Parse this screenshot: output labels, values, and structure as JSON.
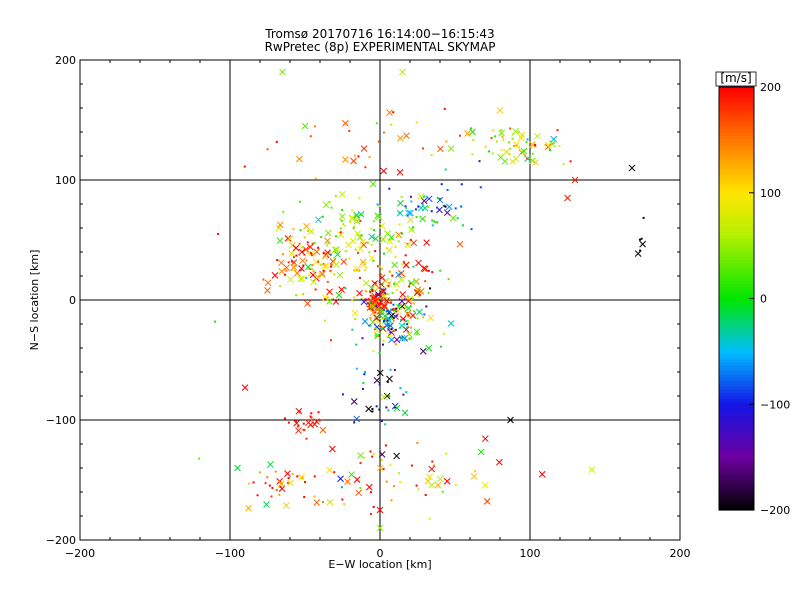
{
  "chart_data": {
    "type": "scatter",
    "title": "Tromsø 20170716 16:14:00−16:15:43",
    "subtitle": "RwPretec (8p) EXPERIMENTAL SKYMAP",
    "xlabel": "E−W location [km]",
    "ylabel": "N−S location [km]",
    "xlim": [
      -200,
      200
    ],
    "ylim": [
      -200,
      200
    ],
    "xticks": [
      -200,
      -100,
      0,
      100,
      200
    ],
    "yticks": [
      -200,
      -100,
      0,
      100,
      200
    ],
    "grid": true,
    "colorbar": {
      "label": "[m/s]",
      "range": [
        -200,
        200
      ],
      "ticks": [
        200,
        100,
        0,
        -100,
        -200
      ]
    },
    "clusters": [
      {
        "center": [
          -3,
          -2
        ],
        "spread": [
          3,
          4
        ],
        "count": 70,
        "v_mean": 185,
        "v_spread": 20
      },
      {
        "center": [
          8,
          -15
        ],
        "spread": [
          12,
          12
        ],
        "count": 160,
        "v_mean": 20,
        "v_spread": 110
      },
      {
        "center": [
          0,
          20
        ],
        "spread": [
          22,
          18
        ],
        "count": 110,
        "v_mean": 120,
        "v_spread": 100
      },
      {
        "center": [
          -48,
          32
        ],
        "spread": [
          14,
          12
        ],
        "count": 90,
        "v_mean": 160,
        "v_spread": 60
      },
      {
        "center": [
          -20,
          55
        ],
        "spread": [
          20,
          14
        ],
        "count": 80,
        "v_mean": 50,
        "v_spread": 40
      },
      {
        "center": [
          30,
          75
        ],
        "spread": [
          15,
          10
        ],
        "count": 55,
        "v_mean": -40,
        "v_spread": 70
      },
      {
        "center": [
          92,
          128
        ],
        "spread": [
          22,
          9
        ],
        "count": 70,
        "v_mean": 70,
        "v_spread": 60
      },
      {
        "center": [
          -8,
          130
        ],
        "spread": [
          28,
          18
        ],
        "count": 30,
        "v_mean": 160,
        "v_spread": 60
      },
      {
        "center": [
          -50,
          -100
        ],
        "spread": [
          6,
          6
        ],
        "count": 22,
        "v_mean": 190,
        "v_spread": 15
      },
      {
        "center": [
          0,
          -80
        ],
        "spread": [
          10,
          20
        ],
        "count": 40,
        "v_mean": -120,
        "v_spread": 90
      },
      {
        "center": [
          5,
          -150
        ],
        "spread": [
          40,
          15
        ],
        "count": 70,
        "v_mean": 140,
        "v_spread": 90
      },
      {
        "center": [
          -70,
          -150
        ],
        "spread": [
          14,
          8
        ],
        "count": 25,
        "v_mean": 170,
        "v_spread": 50
      },
      {
        "center": [
          175,
          50
        ],
        "spread": [
          6,
          10
        ],
        "count": 6,
        "v_mean": -200,
        "v_spread": 5
      }
    ],
    "highlight_points": [
      {
        "x": -65,
        "y": 190,
        "v": 40,
        "marker": "x"
      },
      {
        "x": 15,
        "y": 190,
        "v": 60,
        "marker": "x"
      },
      {
        "x": 80,
        "y": 158,
        "v": 110,
        "marker": "x"
      },
      {
        "x": 168,
        "y": 110,
        "v": -200,
        "marker": "x"
      },
      {
        "x": 87,
        "y": -100,
        "v": -200,
        "marker": "x"
      },
      {
        "x": -110,
        "y": -18,
        "v": 10,
        "marker": "dot"
      },
      {
        "x": -108,
        "y": 55,
        "v": 190,
        "marker": "dot"
      },
      {
        "x": -90,
        "y": -73,
        "v": 200,
        "marker": "x"
      },
      {
        "x": 130,
        "y": 100,
        "v": 190,
        "marker": "x"
      },
      {
        "x": 125,
        "y": 85,
        "v": 190,
        "marker": "x"
      },
      {
        "x": -50,
        "y": 145,
        "v": 30,
        "marker": "x"
      },
      {
        "x": 0,
        "y": -190,
        "v": 50,
        "marker": "x"
      },
      {
        "x": 0,
        "y": -175,
        "v": 200,
        "marker": "x"
      },
      {
        "x": -75,
        "y": 8,
        "v": 160,
        "marker": "x"
      },
      {
        "x": -95,
        "y": -140,
        "v": -10,
        "marker": "x"
      }
    ]
  }
}
